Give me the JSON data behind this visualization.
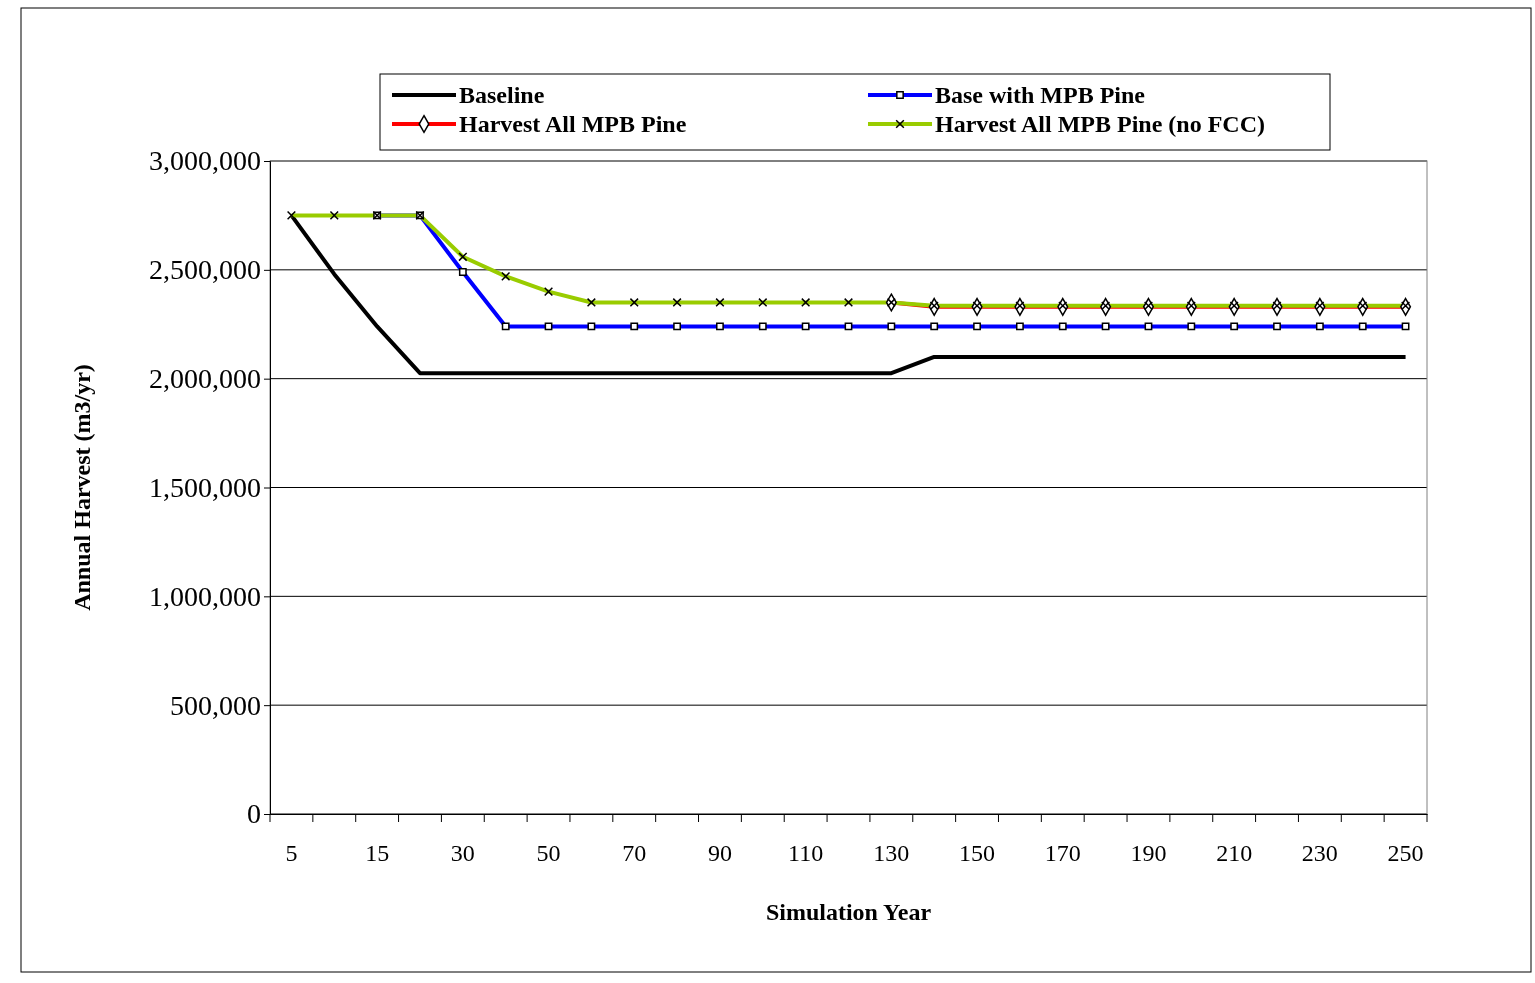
{
  "chart_data": {
    "type": "line",
    "xlabel": "Simulation Year",
    "ylabel": "Annual Harvest (m3/yr)",
    "categories": [
      "5",
      null,
      "15",
      null,
      "30",
      null,
      "50",
      null,
      "70",
      null,
      "90",
      null,
      "110",
      null,
      "130",
      null,
      "150",
      null,
      "170",
      null,
      "190",
      null,
      "210",
      null,
      "230",
      null,
      "250"
    ],
    "ylim": [
      0,
      3000000
    ],
    "yticks": [
      {
        "value": 0,
        "label": "0"
      },
      {
        "value": 500000,
        "label": "500,000"
      },
      {
        "value": 1000000,
        "label": "1,000,000"
      },
      {
        "value": 1500000,
        "label": "1,500,000"
      },
      {
        "value": 2000000,
        "label": "2,000,000"
      },
      {
        "value": 2500000,
        "label": "2,500,000"
      },
      {
        "value": 3000000,
        "label": "3,000,000"
      }
    ],
    "grid": "y",
    "legend": "top",
    "series": [
      {
        "name": "Baseline",
        "color": "#000000",
        "marker": "none",
        "values": [
          2750000,
          2480000,
          2240000,
          2025000,
          2025000,
          2025000,
          2025000,
          2025000,
          2025000,
          2025000,
          2025000,
          2025000,
          2025000,
          2025000,
          2025000,
          2100000,
          2100000,
          2100000,
          2100000,
          2100000,
          2100000,
          2100000,
          2100000,
          2100000,
          2100000,
          2100000,
          2100000
        ]
      },
      {
        "name": "Base with MPB Pine",
        "color": "#0000ff",
        "marker": "square",
        "values": [
          null,
          null,
          2750000,
          2750000,
          2490000,
          2240000,
          2240000,
          2240000,
          2240000,
          2240000,
          2240000,
          2240000,
          2240000,
          2240000,
          2240000,
          2240000,
          2240000,
          2240000,
          2240000,
          2240000,
          2240000,
          2240000,
          2240000,
          2240000,
          2240000,
          2240000,
          2240000
        ]
      },
      {
        "name": "Harvest All MPB Pine",
        "color": "#ff0000",
        "marker": "diamond",
        "values": [
          null,
          null,
          null,
          null,
          null,
          null,
          null,
          null,
          null,
          null,
          null,
          null,
          null,
          null,
          2350000,
          2330000,
          2330000,
          2330000,
          2330000,
          2330000,
          2330000,
          2330000,
          2330000,
          2330000,
          2330000,
          2330000,
          2330000
        ]
      },
      {
        "name": "Harvest All MPB Pine (no FCC)",
        "color": "#99cc00",
        "marker": "cross",
        "values": [
          2750000,
          2750000,
          2750000,
          2750000,
          2560000,
          2470000,
          2400000,
          2350000,
          2350000,
          2350000,
          2350000,
          2350000,
          2350000,
          2350000,
          2350000,
          2335000,
          2335000,
          2335000,
          2335000,
          2335000,
          2335000,
          2335000,
          2335000,
          2335000,
          2335000,
          2335000,
          2335000
        ]
      }
    ]
  }
}
